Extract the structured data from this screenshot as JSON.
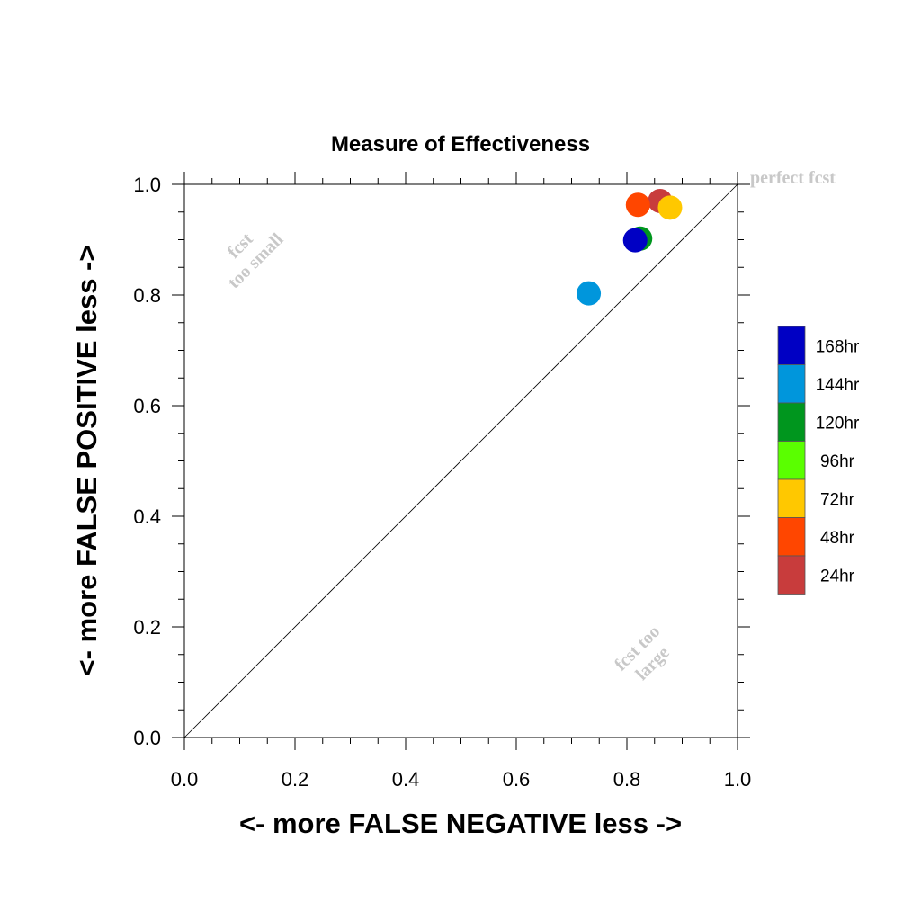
{
  "chart_data": {
    "type": "scatter",
    "title": "Measure of Effectiveness",
    "xlabel": "<- more   FALSE NEGATIVE   less ->",
    "ylabel": "<- more   FALSE POSITIVE   less ->",
    "xlim": [
      0.0,
      1.0
    ],
    "ylim": [
      0.0,
      1.0
    ],
    "xticks": [
      "0.0",
      "0.2",
      "0.4",
      "0.6",
      "0.8",
      "1.0"
    ],
    "yticks": [
      "0.0",
      "0.2",
      "0.4",
      "0.6",
      "0.8",
      "1.0"
    ],
    "grid": false,
    "reference_line": "diagonal y = x",
    "annotations": {
      "perfect": "perfect fcst",
      "too_small": [
        "fcst",
        "too small"
      ],
      "too_large": [
        "fcst too",
        "large"
      ]
    },
    "legend": {
      "placement": "right",
      "entries": [
        {
          "label": "168hr",
          "color": "#0000c4"
        },
        {
          "label": "144hr",
          "color": "#0096dc"
        },
        {
          "label": "120hr",
          "color": "#00961e"
        },
        {
          "label": "96hr",
          "color": "#5aff00"
        },
        {
          "label": "72hr",
          "color": "#ffc800"
        },
        {
          "label": "48hr",
          "color": "#ff4600"
        },
        {
          "label": "24hr",
          "color": "#c83c3c"
        }
      ]
    },
    "points": [
      {
        "series": "24hr",
        "color": "#c83c3c",
        "x": 0.86,
        "y": 0.97
      },
      {
        "series": "48hr",
        "color": "#ff4600",
        "x": 0.82,
        "y": 0.963
      },
      {
        "series": "72hr",
        "color": "#ffc800",
        "x": 0.878,
        "y": 0.958
      },
      {
        "series": "120hr",
        "color": "#00961e",
        "x": 0.824,
        "y": 0.902
      },
      {
        "series": "168hr",
        "color": "#0000c4",
        "x": 0.815,
        "y": 0.899
      },
      {
        "series": "144hr",
        "color": "#0096dc",
        "x": 0.731,
        "y": 0.803
      }
    ]
  }
}
